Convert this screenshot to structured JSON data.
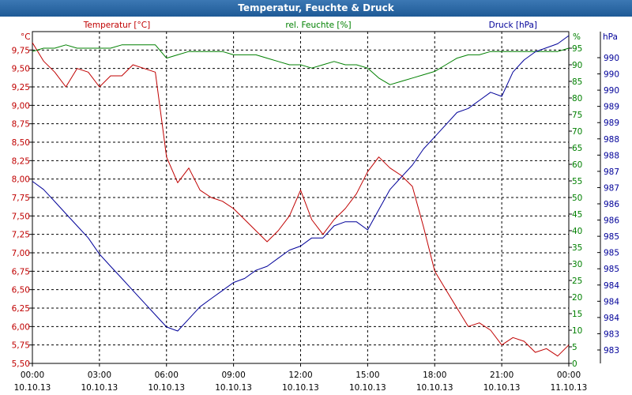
{
  "window": {
    "title": "Temperatur, Feuchte & Druck"
  },
  "chart_data": {
    "type": "line",
    "title": "Temperatur, Feuchte & Druck",
    "x_ticks": [
      {
        "time": "00:00",
        "date": "10.10.13"
      },
      {
        "time": "03:00",
        "date": "10.10.13"
      },
      {
        "time": "06:00",
        "date": "10.10.13"
      },
      {
        "time": "09:00",
        "date": "10.10.13"
      },
      {
        "time": "12:00",
        "date": "10.10.13"
      },
      {
        "time": "15:00",
        "date": "10.10.13"
      },
      {
        "time": "18:00",
        "date": "10.10.13"
      },
      {
        "time": "21:00",
        "date": "10.10.13"
      },
      {
        "time": "00:00",
        "date": "11.10.13"
      }
    ],
    "x_range_hours": [
      0,
      24
    ],
    "grid": true,
    "colors": {
      "temperature": "#c00000",
      "humidity": "#008000",
      "pressure": "#000099",
      "grid": "#000000"
    },
    "axes": {
      "temperature": {
        "unit": "°C",
        "label": "Temperatur [°C]",
        "range": [
          5.5,
          10.0
        ],
        "ticks": [
          "5,50",
          "5,75",
          "6,00",
          "6,25",
          "6,50",
          "6,75",
          "7,00",
          "7,25",
          "7,50",
          "7,75",
          "8,00",
          "8,25",
          "8,50",
          "8,75",
          "9,00",
          "9,25",
          "9,50",
          "9,75"
        ]
      },
      "humidity": {
        "unit": "%",
        "label": "rel. Feuchte [%]",
        "range": [
          0,
          100
        ],
        "ticks": [
          "0",
          "5",
          "10",
          "15",
          "20",
          "25",
          "30",
          "35",
          "40",
          "45",
          "50",
          "55",
          "60",
          "65",
          "70",
          "75",
          "80",
          "85",
          "90",
          "95"
        ]
      },
      "pressure": {
        "unit": "hPa",
        "label": "Druck [hPa]",
        "range": [
          982.5,
          990.7
        ],
        "ticks": [
          "983",
          "983",
          "984",
          "984",
          "984",
          "985",
          "985",
          "985",
          "986",
          "986",
          "987",
          "987",
          "988",
          "988",
          "989",
          "989",
          "990",
          "990",
          "990"
        ]
      }
    },
    "series": [
      {
        "name": "Temperatur",
        "unit": "°C",
        "x": [
          0,
          0.5,
          1,
          1.5,
          2,
          2.5,
          3,
          3.5,
          4,
          4.5,
          5,
          5.5,
          6,
          6.5,
          7,
          7.5,
          8,
          8.5,
          9,
          9.5,
          10,
          10.5,
          11,
          11.5,
          12,
          12.5,
          13,
          13.5,
          14,
          14.5,
          15,
          15.5,
          16,
          16.5,
          17,
          17.5,
          18,
          18.5,
          19,
          19.5,
          20,
          20.5,
          21,
          21.5,
          22,
          22.5,
          23,
          23.5,
          24
        ],
        "values": [
          9.85,
          9.6,
          9.45,
          9.25,
          9.5,
          9.45,
          9.25,
          9.4,
          9.4,
          9.55,
          9.5,
          9.45,
          8.3,
          7.95,
          8.15,
          7.85,
          7.75,
          7.7,
          7.6,
          7.45,
          7.3,
          7.15,
          7.3,
          7.5,
          7.85,
          7.45,
          7.25,
          7.45,
          7.6,
          7.8,
          8.1,
          8.3,
          8.15,
          8.05,
          7.9,
          7.35,
          6.75,
          6.5,
          6.25,
          6.0,
          6.05,
          5.95,
          5.75,
          5.85,
          5.8,
          5.65,
          5.7,
          5.6,
          5.75
        ]
      },
      {
        "name": "rel. Feuchte",
        "unit": "%",
        "x": [
          0,
          0.5,
          1,
          1.5,
          2,
          2.5,
          3,
          3.5,
          4,
          4.5,
          5,
          5.5,
          6,
          6.5,
          7,
          7.5,
          8,
          8.5,
          9,
          9.5,
          10,
          10.5,
          11,
          11.5,
          12,
          12.5,
          13,
          13.5,
          14,
          14.5,
          15,
          15.5,
          16,
          16.5,
          17,
          17.5,
          18,
          18.5,
          19,
          19.5,
          20,
          20.5,
          21,
          21.5,
          22,
          22.5,
          23,
          23.5,
          24
        ],
        "values": [
          94,
          95,
          95,
          96,
          95,
          95,
          95,
          95,
          96,
          96,
          96,
          96,
          92,
          93,
          94,
          94,
          94,
          94,
          93,
          93,
          93,
          92,
          91,
          90,
          90,
          89,
          90,
          91,
          90,
          90,
          89,
          86,
          84,
          85,
          86,
          87,
          88,
          90,
          92,
          93,
          93,
          94,
          94,
          94,
          94,
          94,
          94,
          94,
          95
        ]
      },
      {
        "name": "Druck",
        "unit": "hPa",
        "x": [
          0,
          0.5,
          1,
          1.5,
          2,
          2.5,
          3,
          3.5,
          4,
          4.5,
          5,
          5.5,
          6,
          6.5,
          7,
          7.5,
          8,
          8.5,
          9,
          9.5,
          10,
          10.5,
          11,
          11.5,
          12,
          12.5,
          13,
          13.5,
          14,
          14.5,
          15,
          15.5,
          16,
          16.5,
          17,
          17.5,
          18,
          18.5,
          19,
          19.5,
          20,
          20.5,
          21,
          21.5,
          22,
          22.5,
          23,
          23.5,
          24
        ],
        "values": [
          987.0,
          986.8,
          986.5,
          986.2,
          985.9,
          985.6,
          985.2,
          984.9,
          984.6,
          984.3,
          984.0,
          983.7,
          983.4,
          983.3,
          983.6,
          983.9,
          984.1,
          984.3,
          984.5,
          984.6,
          984.8,
          984.9,
          985.1,
          985.3,
          985.4,
          985.6,
          985.6,
          985.9,
          986.0,
          986.0,
          985.8,
          986.3,
          986.8,
          987.1,
          987.4,
          987.8,
          988.1,
          988.4,
          988.7,
          988.8,
          989.0,
          989.2,
          989.1,
          989.7,
          990.0,
          990.2,
          990.3,
          990.4,
          990.6
        ]
      }
    ]
  }
}
